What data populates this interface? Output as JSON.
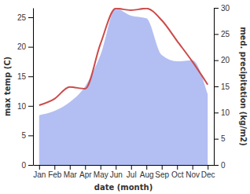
{
  "chart_data": {
    "type": "line",
    "x_label": "date (month)",
    "y_label": "max temp (C)",
    "y2_label": "med. precipitation (kg/m2)",
    "categories": [
      "Jan",
      "Feb",
      "Mar",
      "Apr",
      "May",
      "Jun",
      "Jul",
      "Aug",
      "Sep",
      "Oct",
      "Nov",
      "Dec"
    ],
    "series": [
      {
        "type": "area",
        "axis": "y2",
        "color": "#b3bff2",
        "values": [
          9.5,
          10.3,
          12.0,
          15.0,
          21.0,
          29.8,
          28.5,
          28.0,
          21.0,
          19.8,
          20.0,
          13.5
        ]
      },
      {
        "type": "line",
        "color": "#cc4a4a",
        "values": [
          10.1,
          11.2,
          13.2,
          12.9,
          20.5,
          26.5,
          26.2,
          26.5,
          24.5,
          21.0,
          17.5,
          13.6
        ]
      }
    ],
    "ylim": [
      0,
      26.6
    ],
    "yticks": [
      0,
      5,
      10,
      15,
      20,
      25
    ],
    "y2lim": [
      0,
      30
    ],
    "y2ticks": [
      0,
      5,
      10,
      15,
      20,
      25,
      30
    ]
  }
}
